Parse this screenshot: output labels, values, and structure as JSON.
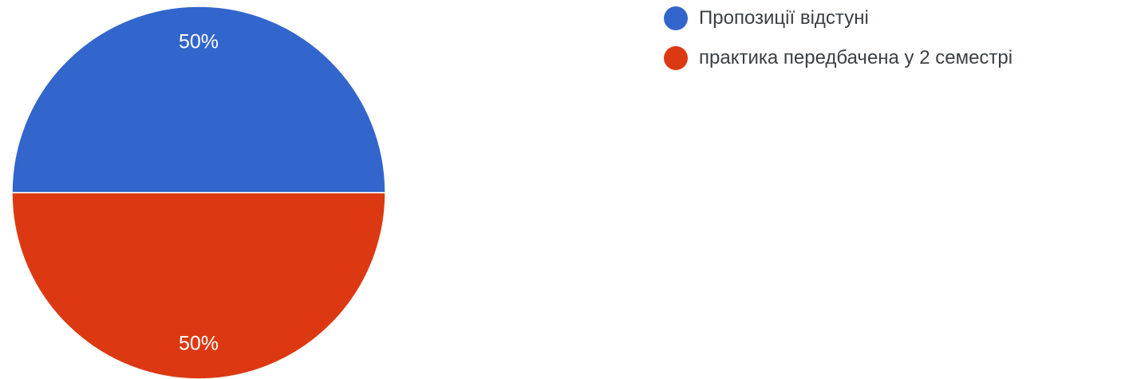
{
  "chart_data": {
    "type": "pie",
    "slices": [
      {
        "label": "Пропозиції відстуні",
        "value": 50,
        "display": "50%",
        "color": "#3366cc"
      },
      {
        "label": "практика передбачена у 2 семестрі",
        "value": 50,
        "display": "50%",
        "color": "#dc3912"
      }
    ],
    "legend_position": "top-right"
  }
}
